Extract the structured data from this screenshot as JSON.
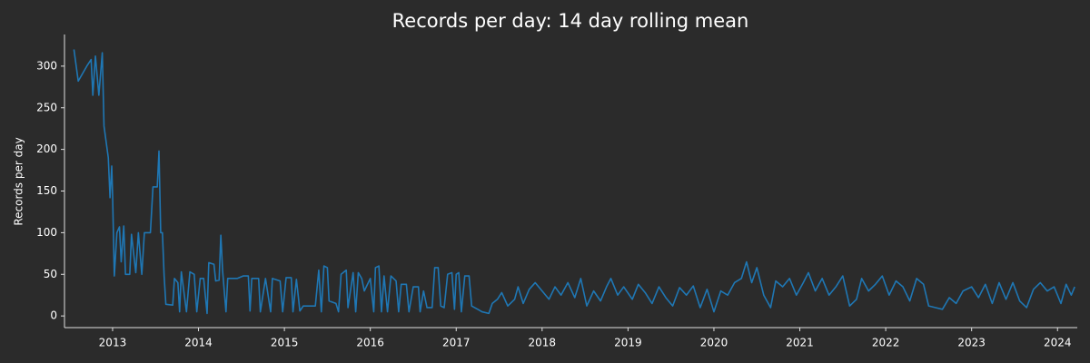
{
  "chart_data": {
    "type": "line",
    "title": "Records per day: 14 day rolling mean",
    "ylabel": "Records per day",
    "color": "#1f77b4",
    "grid": false,
    "xlim": [
      2012.44,
      2024.23
    ],
    "xticks": [
      2013,
      2014,
      2015,
      2016,
      2017,
      2018,
      2019,
      2020,
      2021,
      2022,
      2023,
      2024
    ],
    "ylim": [
      -14,
      338
    ],
    "yticks": [
      0,
      50,
      100,
      150,
      200,
      250,
      300
    ],
    "x": [
      2012.55,
      2012.6,
      2012.7,
      2012.75,
      2012.77,
      2012.8,
      2012.84,
      2012.88,
      2012.9,
      2012.95,
      2012.97,
      2012.99,
      2013.0,
      2013.02,
      2013.05,
      2013.08,
      2013.1,
      2013.13,
      2013.15,
      2013.2,
      2013.22,
      2013.27,
      2013.3,
      2013.34,
      2013.37,
      2013.44,
      2013.47,
      2013.52,
      2013.54,
      2013.56,
      2013.58,
      2013.6,
      2013.62,
      2013.7,
      2013.72,
      2013.76,
      2013.78,
      2013.8,
      2013.86,
      2013.9,
      2013.95,
      2013.98,
      2014.02,
      2014.06,
      2014.1,
      2014.12,
      2014.18,
      2014.2,
      2014.24,
      2014.26,
      2014.28,
      2014.32,
      2014.34,
      2014.45,
      2014.52,
      2014.58,
      2014.6,
      2014.62,
      2014.7,
      2014.72,
      2014.78,
      2014.84,
      2014.86,
      2014.95,
      2014.98,
      2015.02,
      2015.08,
      2015.1,
      2015.14,
      2015.18,
      2015.22,
      2015.36,
      2015.4,
      2015.43,
      2015.46,
      2015.5,
      2015.52,
      2015.6,
      2015.63,
      2015.66,
      2015.72,
      2015.74,
      2015.8,
      2015.83,
      2015.86,
      2015.9,
      2015.93,
      2016.0,
      2016.04,
      2016.06,
      2016.1,
      2016.13,
      2016.16,
      2016.2,
      2016.24,
      2016.3,
      2016.33,
      2016.36,
      2016.42,
      2016.45,
      2016.5,
      2016.56,
      2016.58,
      2016.62,
      2016.66,
      2016.72,
      2016.75,
      2016.79,
      2016.82,
      2016.86,
      2016.9,
      2016.95,
      2016.98,
      2017.0,
      2017.03,
      2017.06,
      2017.1,
      2017.15,
      2017.18,
      2017.25,
      2017.3,
      2017.38,
      2017.42,
      2017.48,
      2017.53,
      2017.6,
      2017.68,
      2017.72,
      2017.78,
      2017.85,
      2017.92,
      2018.0,
      2018.08,
      2018.15,
      2018.22,
      2018.3,
      2018.38,
      2018.45,
      2018.52,
      2018.6,
      2018.68,
      2018.75,
      2018.8,
      2018.88,
      2018.95,
      2019.05,
      2019.12,
      2019.2,
      2019.28,
      2019.36,
      2019.44,
      2019.52,
      2019.6,
      2019.68,
      2019.76,
      2019.84,
      2019.92,
      2020.0,
      2020.08,
      2020.16,
      2020.24,
      2020.32,
      2020.38,
      2020.44,
      2020.5,
      2020.58,
      2020.66,
      2020.72,
      2020.8,
      2020.88,
      2020.96,
      2021.04,
      2021.1,
      2021.18,
      2021.26,
      2021.34,
      2021.42,
      2021.5,
      2021.58,
      2021.66,
      2021.72,
      2021.8,
      2021.88,
      2021.96,
      2022.04,
      2022.12,
      2022.2,
      2022.28,
      2022.36,
      2022.44,
      2022.5,
      2022.58,
      2022.66,
      2022.74,
      2022.82,
      2022.9,
      2023.0,
      2023.08,
      2023.16,
      2023.24,
      2023.32,
      2023.4,
      2023.48,
      2023.56,
      2023.64,
      2023.72,
      2023.8,
      2023.88,
      2023.96,
      2024.04,
      2024.1,
      2024.16,
      2024.2
    ],
    "values": [
      320,
      282,
      300,
      308,
      265,
      312,
      265,
      316,
      228,
      190,
      142,
      180,
      145,
      48,
      100,
      107,
      65,
      108,
      50,
      50,
      98,
      52,
      100,
      50,
      100,
      100,
      155,
      155,
      198,
      100,
      100,
      48,
      14,
      13,
      45,
      40,
      5,
      53,
      5,
      53,
      50,
      5,
      45,
      45,
      3,
      64,
      62,
      42,
      43,
      97,
      55,
      5,
      45,
      45,
      48,
      48,
      6,
      45,
      45,
      5,
      45,
      5,
      45,
      42,
      5,
      46,
      46,
      5,
      44,
      6,
      12,
      12,
      55,
      5,
      60,
      58,
      18,
      15,
      5,
      50,
      55,
      10,
      52,
      5,
      52,
      45,
      30,
      45,
      5,
      58,
      60,
      5,
      48,
      5,
      48,
      42,
      5,
      38,
      38,
      5,
      35,
      35,
      5,
      30,
      10,
      10,
      58,
      58,
      12,
      10,
      50,
      52,
      8,
      50,
      52,
      5,
      48,
      48,
      12,
      8,
      5,
      3,
      15,
      20,
      28,
      12,
      20,
      35,
      15,
      32,
      40,
      30,
      20,
      35,
      25,
      40,
      22,
      45,
      12,
      30,
      18,
      35,
      45,
      25,
      35,
      20,
      38,
      28,
      15,
      35,
      22,
      12,
      34,
      25,
      36,
      10,
      32,
      5,
      30,
      25,
      40,
      45,
      65,
      40,
      58,
      25,
      10,
      42,
      35,
      45,
      25,
      40,
      52,
      30,
      45,
      25,
      35,
      48,
      12,
      20,
      45,
      30,
      38,
      48,
      25,
      42,
      35,
      18,
      45,
      38,
      12,
      10,
      8,
      22,
      15,
      30,
      35,
      22,
      38,
      15,
      40,
      20,
      40,
      18,
      10,
      32,
      40,
      30,
      35,
      15,
      38,
      25,
      35
    ]
  }
}
